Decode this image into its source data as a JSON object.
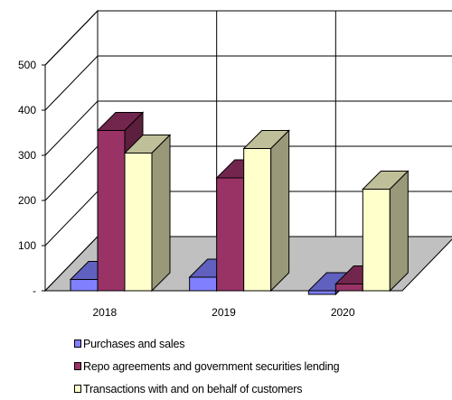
{
  "chart_data": {
    "type": "bar",
    "categories": [
      "2018",
      "2019",
      "2020"
    ],
    "yticks": [
      "-",
      "100",
      "200",
      "300",
      "400",
      "500"
    ],
    "ylim": [
      0,
      500
    ],
    "series": [
      {
        "name": "Purchases and sales",
        "values": [
          25,
          30,
          -8
        ],
        "color": "#8080ff"
      },
      {
        "name": "Repo agreements and government securities lending",
        "values": [
          355,
          250,
          15
        ],
        "color": "#993366"
      },
      {
        "name": "Transactions with and on behalf of customers",
        "values": [
          305,
          315,
          225
        ],
        "color": "#ffffcc"
      }
    ],
    "legend_position": "bottom-left",
    "grid": true
  }
}
